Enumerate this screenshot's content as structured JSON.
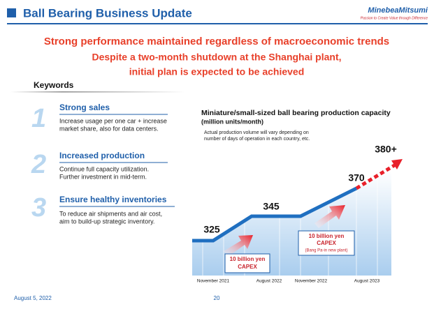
{
  "header": {
    "title": "Ball Bearing Business Update",
    "logo": "MinebeaMitsumi",
    "tagline": "Passion to Create Value through Difference"
  },
  "headline": {
    "main": "Strong performance maintained regardless of macroeconomic trends",
    "sub": [
      "Despite a two-month shutdown at the Shanghai plant,",
      "initial plan is expected to be achieved"
    ]
  },
  "keywords": {
    "title": "Keywords",
    "items": [
      {
        "number": "1",
        "heading": "Strong sales",
        "text": [
          "Increase usage per one car + increase",
          "market share, also for data centers."
        ]
      },
      {
        "number": "2",
        "heading": "Increased production",
        "text": [
          "Continue full capacity utilization.",
          "Further investment in mid-term."
        ]
      },
      {
        "number": "3",
        "heading": "Ensure healthy inventories",
        "text": [
          "To reduce air shipments and air cost,",
          "aim to build-up strategic inventory."
        ]
      }
    ]
  },
  "capacity": {
    "title": "Miniature/small-sized ball bearing production capacity",
    "unit": "(million units/month)",
    "note": [
      "Actual production volume will vary depending on",
      "number of days of operation in each country, etc."
    ],
    "levels": [
      "325",
      "345",
      "370",
      "380+"
    ],
    "dates": [
      "November 2021",
      "August 2022",
      "November 2022",
      "August 2023"
    ],
    "capex": [
      {
        "lines": [
          "10 billion yen",
          "CAPEX"
        ]
      },
      {
        "lines": [
          "10 billion yen",
          "CAPEX"
        ],
        "detail": "(Bang Pa-in new plant)"
      }
    ]
  },
  "footer": {
    "date": "August 5, 2022",
    "page": "20"
  }
}
